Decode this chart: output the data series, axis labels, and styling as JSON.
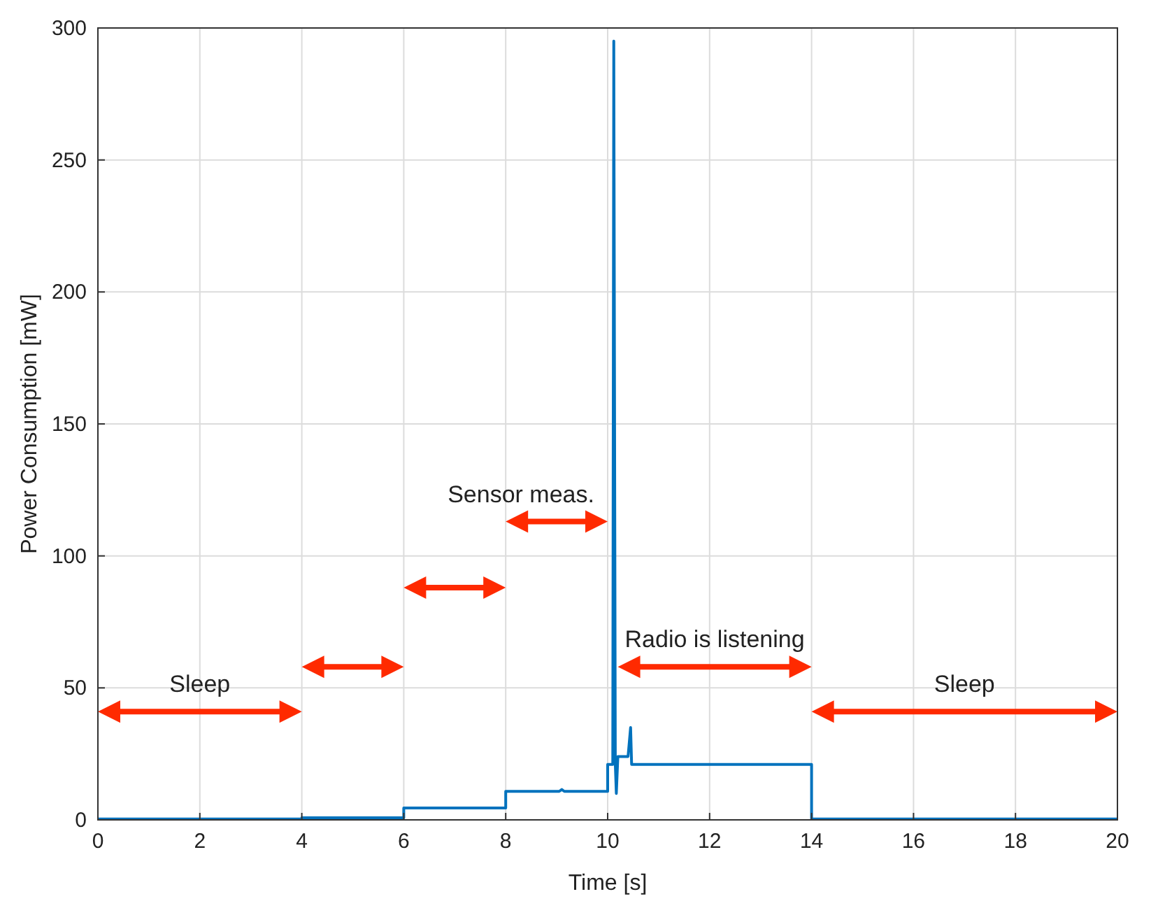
{
  "chart_data": {
    "type": "line",
    "xlabel": "Time [s]",
    "ylabel": "Power Consumption [mW]",
    "xlim": [
      0,
      20
    ],
    "xticks": [
      0,
      2,
      4,
      6,
      8,
      10,
      12,
      14,
      16,
      18,
      20
    ],
    "ylim": [
      0,
      300
    ],
    "yticks": [
      0,
      50,
      100,
      150,
      200,
      250,
      300
    ],
    "grid": true,
    "series": [
      {
        "color": "#0072bd",
        "x": [
          0,
          4,
          4,
          6,
          6,
          8,
          8,
          9.05,
          9.1,
          9.15,
          10,
          10,
          10.1,
          10.12,
          10.15,
          10.17,
          10.2,
          10.4,
          10.45,
          10.47,
          10.5,
          14,
          14,
          20
        ],
        "values": [
          0.3,
          0.3,
          0.8,
          0.8,
          4.5,
          4.5,
          10.8,
          10.8,
          11.5,
          10.8,
          10.8,
          21,
          21,
          295,
          21,
          10,
          24,
          24,
          35,
          21,
          21,
          21,
          0.3,
          0.3
        ]
      }
    ],
    "annotations": [
      "Sleep",
      "Sensor meas.",
      "Radio is listening",
      "Sleep"
    ]
  }
}
